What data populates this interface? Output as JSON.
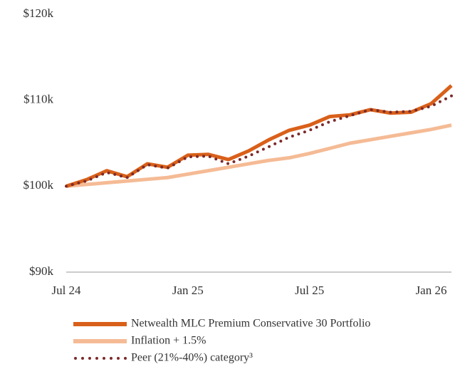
{
  "chart_data": {
    "type": "line",
    "categories": [
      "Jul 24",
      null,
      null,
      null,
      null,
      null,
      "Jan 25",
      null,
      null,
      null,
      null,
      null,
      "Jul 25",
      null,
      null,
      null,
      null,
      null,
      "Jan 26",
      null
    ],
    "series": [
      {
        "name": "Netwealth MLC Premium Conservative 30 Portfolio",
        "color": "#d9601a",
        "style": "solid",
        "values": [
          100000,
          100750,
          101800,
          101100,
          102600,
          102200,
          103600,
          103700,
          103100,
          104100,
          105400,
          106500,
          107100,
          108100,
          108300,
          108900,
          108500,
          108600,
          109600,
          111700
        ]
      },
      {
        "name": "Inflation + 1.5%",
        "color": "#f5bb95",
        "style": "solid",
        "values": [
          100000,
          100200,
          100400,
          100600,
          100800,
          101000,
          101400,
          101800,
          102200,
          102600,
          103000,
          103300,
          103800,
          104400,
          105000,
          105400,
          105800,
          106200,
          106600,
          107100
        ]
      },
      {
        "name": "Peer (21%-40%) category³",
        "color": "#7b2a2a",
        "style": "dotted",
        "values": [
          100000,
          100600,
          101600,
          101000,
          102500,
          102100,
          103400,
          103500,
          102600,
          103500,
          104600,
          105700,
          106500,
          107500,
          108200,
          108900,
          108600,
          108700,
          109300,
          110500
        ]
      }
    ],
    "ylim": [
      90000,
      120000
    ],
    "yticks": [
      {
        "value": 90000,
        "label": "$90k"
      },
      {
        "value": 100000,
        "label": "$100k"
      },
      {
        "value": 110000,
        "label": "$110k"
      },
      {
        "value": 120000,
        "label": "$120k"
      }
    ],
    "grid": false,
    "legend": "bottom"
  }
}
